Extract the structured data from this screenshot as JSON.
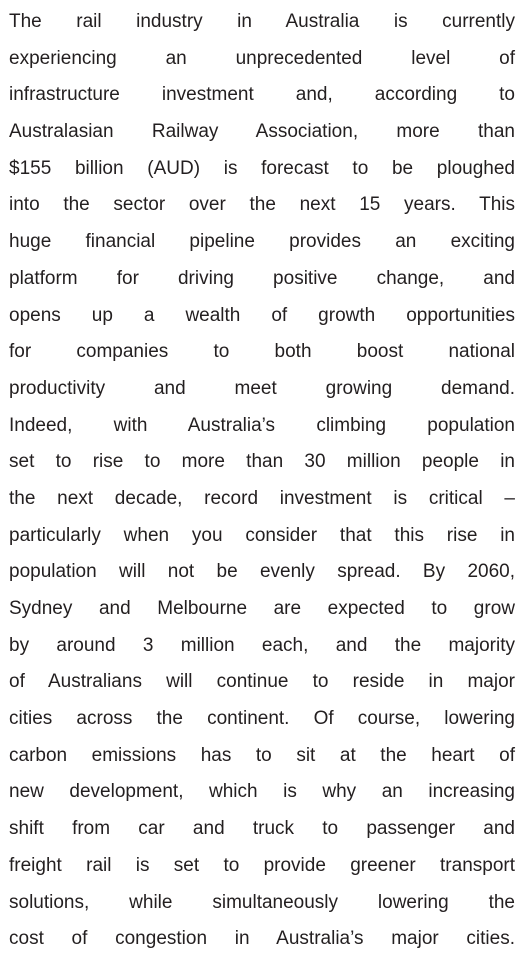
{
  "paragraph": {
    "lines": [
      "The rail industry in Australia is currently",
      "experiencing an unprecedented level of",
      "infrastructure investment and, according to",
      "Australasian Railway Association, more than",
      "$155 billion (AUD) is forecast to be ploughed",
      "into the sector over the next 15 years. This",
      "huge financial pipeline provides an exciting",
      "platform for driving positive change, and",
      "opens up a wealth of growth opportunities",
      "for companies to both boost national",
      "productivity and meet growing demand.",
      "Indeed, with Australia’s climbing population",
      "set to rise to more than 30 million people in",
      "the next decade, record investment is critical –",
      "particularly when you consider that this rise in",
      "population will not be evenly spread. By 2060,",
      "Sydney and Melbourne are expected to grow",
      "by around 3 million each, and the majority",
      "of Australians will continue to reside in major",
      "cities across the continent. Of course, lowering",
      "carbon emissions has to sit at the heart of",
      "new development, which is why an increasing",
      "shift from car and truck to passenger and",
      "freight rail is set to provide greener transport",
      "solutions, while simultaneously lowering the",
      "cost of congestion in Australia’s major cities."
    ]
  }
}
